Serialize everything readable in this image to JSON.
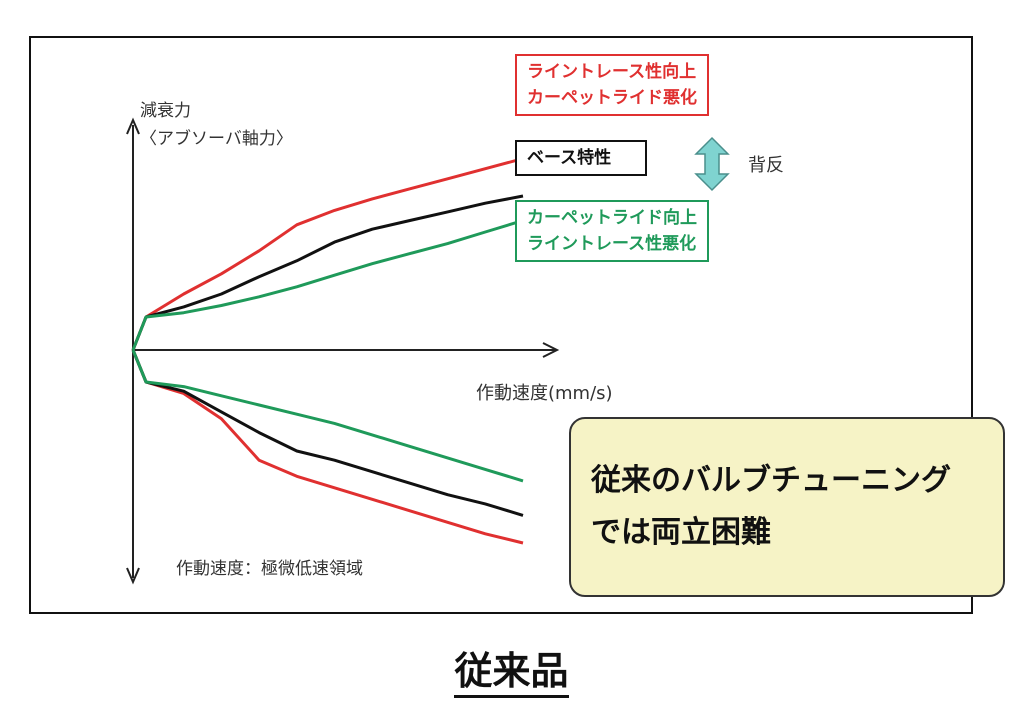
{
  "chart_data": {
    "type": "line",
    "title": "",
    "ylabel_line1": "減衰力",
    "ylabel_line2": "〈アブソーバ軸力〉",
    "xlabel": "作動速度(mm/s)",
    "note": "作動速度：極微低速領域",
    "x": [
      0,
      0.1,
      0.2,
      0.3,
      0.4,
      0.5,
      0.6,
      0.7,
      0.8,
      0.9,
      1.0
    ],
    "series": [
      {
        "name_line1": "ライントレース性向上",
        "name_line2": "カーペットライド悪化",
        "color": "#e03030",
        "extension": [
          0,
          1.6,
          3.0,
          4.6,
          6.4,
          7.4,
          8.2,
          8.9,
          9.6,
          10.3,
          11.0
        ],
        "compression": [
          0,
          -0.5,
          -1.6,
          -3.4,
          -4.1,
          -4.6,
          -5.1,
          -5.6,
          -6.1,
          -6.6,
          -7.0
        ]
      },
      {
        "name": "ベース特性",
        "color": "#111111",
        "extension": [
          0,
          0.7,
          1.6,
          2.8,
          3.9,
          5.2,
          6.1,
          6.7,
          7.3,
          7.9,
          8.4
        ],
        "compression": [
          0,
          -0.4,
          -1.3,
          -2.2,
          -3.0,
          -3.4,
          -3.9,
          -4.4,
          -4.9,
          -5.3,
          -5.8
        ]
      },
      {
        "name_line1": "カーペットライド向上",
        "name_line2": "ライントレース性悪化",
        "color": "#1f9a5a",
        "extension": [
          0,
          0.3,
          0.8,
          1.4,
          2.1,
          2.9,
          3.7,
          4.4,
          5.1,
          5.9,
          6.7
        ],
        "compression": [
          0,
          -0.2,
          -0.6,
          -1.0,
          -1.4,
          -1.8,
          -2.3,
          -2.8,
          -3.3,
          -3.8,
          -4.3
        ]
      }
    ],
    "tradeoff_label": "背反",
    "arrow_color": "#7fd3d0"
  },
  "callout": {
    "line1": "従来のバルブチューニング",
    "line2": "では両立困難"
  },
  "caption": "従来品"
}
